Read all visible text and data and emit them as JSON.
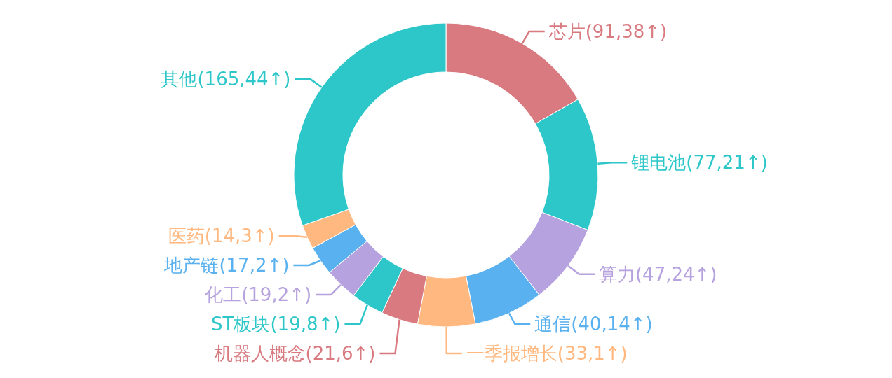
{
  "chart_data": {
    "type": "donut",
    "categories": [
      "芯片(91,38↑)",
      "锂电池(77,21↑)",
      "算力(47,24↑)",
      "通信(40,14↑)",
      "一季报增长(33,1↑)",
      "机器人概念(21,6↑)",
      "ST板块(19,8↑)",
      "化工(19,2↑)",
      "地产链(17,2↑)",
      "医药(14,3↑)",
      "其他(165,44↑)"
    ],
    "values": [
      16.7,
      14.2,
      8.6,
      7.4,
      6.1,
      3.9,
      3.5,
      3.5,
      3.1,
      2.6,
      30.4
    ],
    "colors": [
      "#d87a80",
      "#2ec7c9",
      "#b6a2de",
      "#5ab1ef",
      "#ffb980",
      "#d87a80",
      "#2ec7c9",
      "#b6a2de",
      "#5ab1ef",
      "#ffb980",
      "#2ec7c9"
    ]
  }
}
